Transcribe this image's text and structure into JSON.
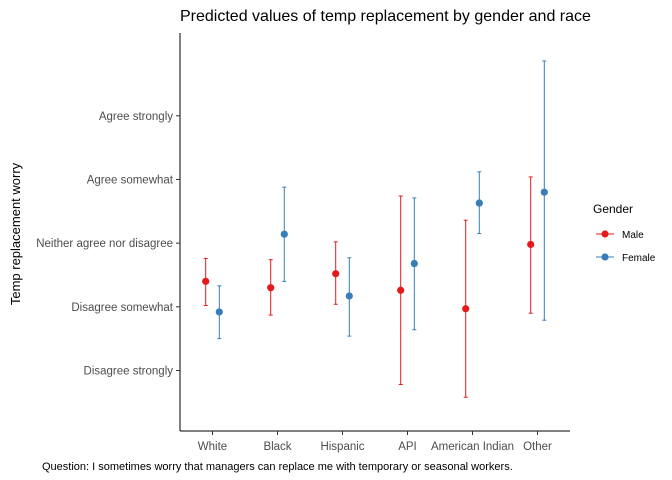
{
  "chart_data": {
    "type": "scatter",
    "title": "Predicted values of temp replacement by gender and race",
    "xlabel": "",
    "ylabel": "Temp replacement worry",
    "caption": "Question: I sometimes worry that managers can replace me with temporary or seasonal workers.",
    "categories": [
      "White",
      "Black",
      "Hispanic",
      "API",
      "American Indian",
      "Other"
    ],
    "y_tick_labels": [
      "Disagree strongly",
      "Disagree somewhat",
      "Neither agree nor disagree",
      "Agree somewhat",
      "Agree strongly"
    ],
    "y_tick_values": [
      1,
      2,
      3,
      4,
      5
    ],
    "ylim": [
      0.05,
      6.3
    ],
    "legend": {
      "title": "Gender",
      "position": "right"
    },
    "series": [
      {
        "name": "Male",
        "color": "#e41a1c",
        "values": [
          2.4,
          2.3,
          2.52,
          2.26,
          1.97,
          2.98
        ],
        "lower": [
          2.02,
          1.87,
          2.04,
          0.78,
          0.58,
          1.9
        ],
        "upper": [
          2.76,
          2.74,
          3.02,
          3.74,
          3.36,
          4.04
        ]
      },
      {
        "name": "Female",
        "color": "#377eb8",
        "values": [
          1.92,
          3.14,
          2.17,
          2.68,
          3.63,
          3.8
        ],
        "lower": [
          1.5,
          2.4,
          1.54,
          1.64,
          3.15,
          1.79
        ],
        "upper": [
          2.33,
          3.88,
          2.77,
          3.71,
          4.12,
          5.86
        ]
      }
    ],
    "grid": false
  }
}
